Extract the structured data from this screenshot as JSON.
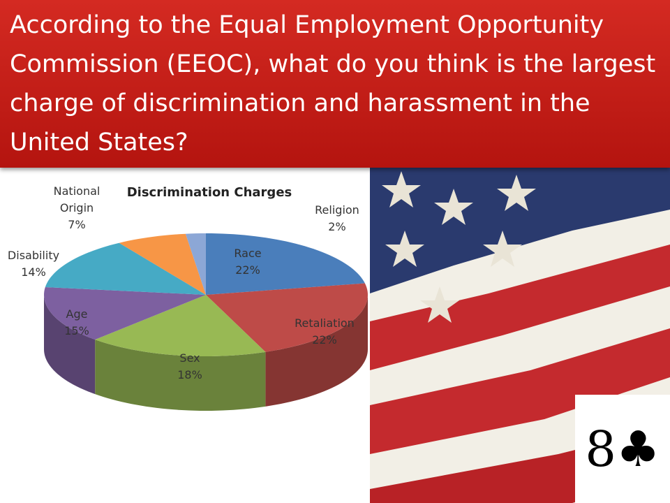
{
  "header": {
    "title": "According to the Equal Employment Opportunity Commission (EEOC), what do you think is the largest charge of discrimination and harassment in the United States?"
  },
  "chart_data": {
    "type": "pie",
    "title": "Discrimination Charges",
    "categories": [
      "Race",
      "Retaliation",
      "Sex",
      "Age",
      "Disability",
      "National Origin",
      "Religion"
    ],
    "values": [
      22,
      22,
      18,
      15,
      14,
      7,
      2
    ],
    "value_labels": [
      "22%",
      "22%",
      "18%",
      "15%",
      "14%",
      "7%",
      "2%"
    ],
    "colors": [
      "#4a7ebb",
      "#be4b48",
      "#98b954",
      "#7d60a0",
      "#46aac5",
      "#f79646",
      "#8ca7d6"
    ]
  },
  "card": "8♣"
}
